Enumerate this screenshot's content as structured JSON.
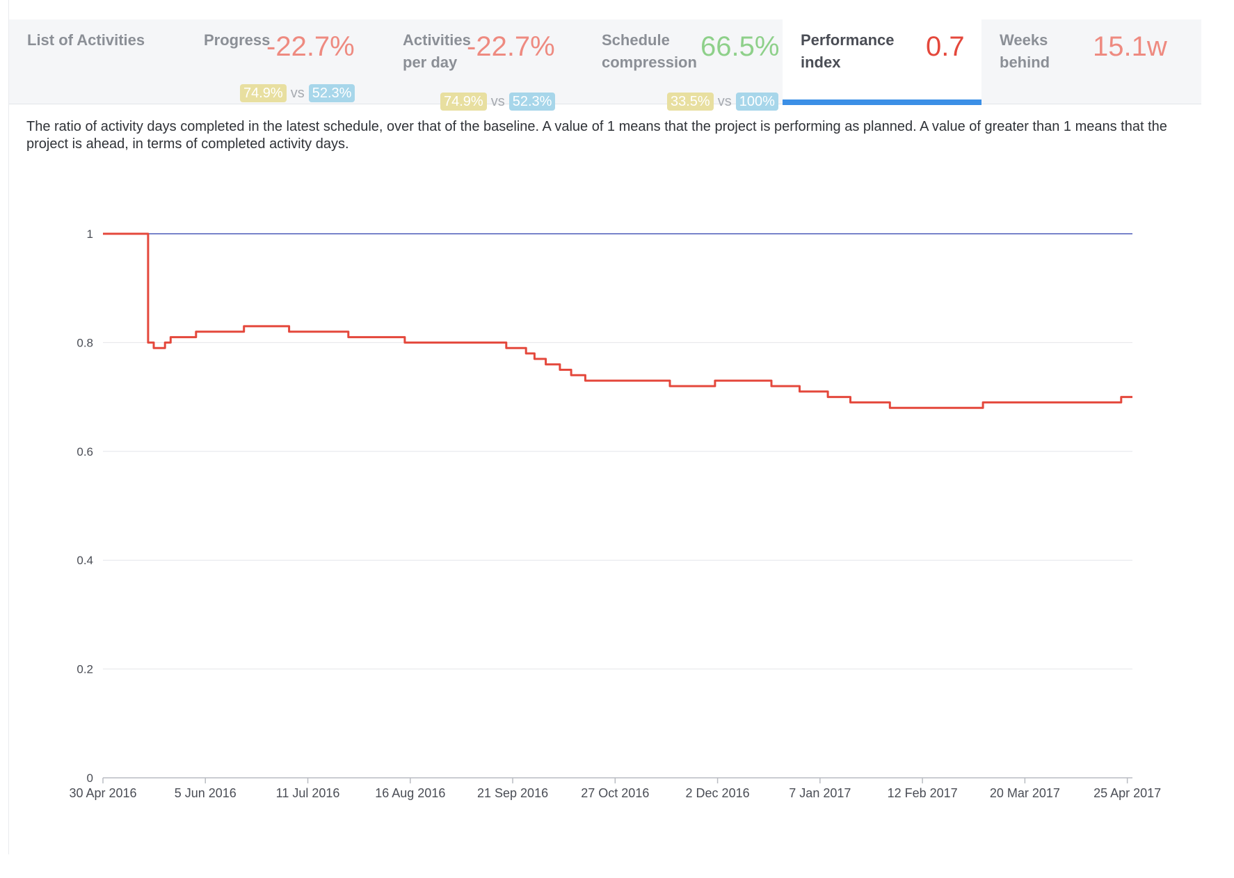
{
  "tabs": [
    {
      "label": "List of Activities"
    },
    {
      "label": "Progress",
      "value": "-22.7%",
      "compare": {
        "a": "74.9%",
        "vs": "vs",
        "b": "52.3%"
      }
    },
    {
      "label": "Activities per day",
      "value": "-22.7%",
      "compare": {
        "a": "74.9%",
        "vs": "vs",
        "b": "52.3%"
      }
    },
    {
      "label": "Schedule compression",
      "value": "66.5%",
      "compare": {
        "a": "33.5%",
        "vs": "vs",
        "b": "100%"
      }
    },
    {
      "label": "Performance index",
      "value": "0.7"
    },
    {
      "label": "Weeks behind",
      "value": "15.1w"
    }
  ],
  "active_tab": "Performance index",
  "description": "The ratio of activity days completed in the latest schedule, over that of the baseline. A value of 1 means that the project is performing as planned. A value of greater than 1 means that the project is ahead, in terms of completed activity days.",
  "colors": {
    "accent": "#3b8fe6",
    "negative": "#e4483c",
    "positive": "#8ed08a",
    "baseline_series": "#4a5ab8",
    "latest_series": "#e4483c"
  },
  "chart_data": {
    "type": "line",
    "title": "",
    "xlabel": "",
    "ylabel": "",
    "ylim": [
      0,
      1
    ],
    "y_ticks": [
      "0",
      "0.2",
      "0.4",
      "0.6",
      "0.8",
      "1"
    ],
    "y_tick_values": [
      0,
      0.2,
      0.4,
      0.6,
      0.8,
      1
    ],
    "x_ticks": [
      "30 Apr 2016",
      "5 Jun 2016",
      "11 Jul 2016",
      "16 Aug 2016",
      "21 Sep 2016",
      "27 Oct 2016",
      "2 Dec 2016",
      "7 Jan 2017",
      "12 Feb 2017",
      "20 Mar 2017",
      "25 Apr 2017"
    ],
    "x_range": [
      "2016-04-30",
      "2017-04-30"
    ],
    "grid": true,
    "series": [
      {
        "key": "baseline",
        "color": "#4a5ab8",
        "points": [
          [
            "2016-04-30",
            1
          ],
          [
            "2017-04-30",
            1
          ]
        ]
      },
      {
        "key": "latest",
        "color": "#e4483c",
        "points": [
          [
            "2016-04-30",
            1
          ],
          [
            "2016-05-16",
            1
          ],
          [
            "2016-05-16",
            0.8
          ],
          [
            "2016-05-18",
            0.8
          ],
          [
            "2016-05-18",
            0.79
          ],
          [
            "2016-05-22",
            0.79
          ],
          [
            "2016-05-22",
            0.8
          ],
          [
            "2016-05-24",
            0.8
          ],
          [
            "2016-05-24",
            0.81
          ],
          [
            "2016-06-02",
            0.81
          ],
          [
            "2016-06-02",
            0.82
          ],
          [
            "2016-06-19",
            0.82
          ],
          [
            "2016-06-19",
            0.83
          ],
          [
            "2016-07-05",
            0.83
          ],
          [
            "2016-07-05",
            0.82
          ],
          [
            "2016-07-26",
            0.82
          ],
          [
            "2016-07-26",
            0.81
          ],
          [
            "2016-08-15",
            0.81
          ],
          [
            "2016-08-15",
            0.8
          ],
          [
            "2016-09-20",
            0.8
          ],
          [
            "2016-09-20",
            0.79
          ],
          [
            "2016-09-27",
            0.79
          ],
          [
            "2016-09-27",
            0.78
          ],
          [
            "2016-09-30",
            0.78
          ],
          [
            "2016-09-30",
            0.77
          ],
          [
            "2016-10-04",
            0.77
          ],
          [
            "2016-10-04",
            0.76
          ],
          [
            "2016-10-09",
            0.76
          ],
          [
            "2016-10-09",
            0.75
          ],
          [
            "2016-10-13",
            0.75
          ],
          [
            "2016-10-13",
            0.74
          ],
          [
            "2016-10-18",
            0.74
          ],
          [
            "2016-10-18",
            0.73
          ],
          [
            "2016-11-17",
            0.73
          ],
          [
            "2016-11-17",
            0.72
          ],
          [
            "2016-12-03",
            0.72
          ],
          [
            "2016-12-03",
            0.73
          ],
          [
            "2016-12-23",
            0.73
          ],
          [
            "2016-12-23",
            0.72
          ],
          [
            "2017-01-02",
            0.72
          ],
          [
            "2017-01-02",
            0.71
          ],
          [
            "2017-01-12",
            0.71
          ],
          [
            "2017-01-12",
            0.7
          ],
          [
            "2017-01-20",
            0.7
          ],
          [
            "2017-01-20",
            0.69
          ],
          [
            "2017-02-03",
            0.69
          ],
          [
            "2017-02-03",
            0.68
          ],
          [
            "2017-03-08",
            0.68
          ],
          [
            "2017-03-08",
            0.69
          ],
          [
            "2017-04-26",
            0.69
          ],
          [
            "2017-04-26",
            0.7
          ],
          [
            "2017-04-30",
            0.7
          ]
        ]
      }
    ]
  }
}
